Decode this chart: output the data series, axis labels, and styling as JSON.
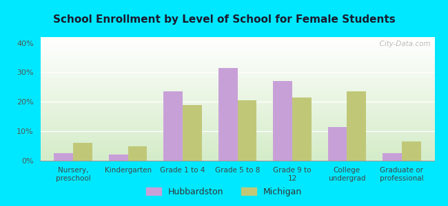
{
  "title": "School Enrollment by Level of School for Female Students",
  "categories": [
    "Nursery,\npreschool",
    "Kindergarten",
    "Grade 1 to 4",
    "Grade 5 to 8",
    "Grade 9 to\n12",
    "College\nundergrad",
    "Graduate or\nprofessional"
  ],
  "hubbardston": [
    2.5,
    2.0,
    23.5,
    31.5,
    27.0,
    11.5,
    2.5
  ],
  "michigan": [
    6.0,
    5.0,
    19.0,
    20.5,
    21.5,
    23.5,
    6.5
  ],
  "hubbardston_color": "#c8a0d8",
  "michigan_color": "#c0c878",
  "background_outer": "#00e8ff",
  "ylim": [
    0,
    42
  ],
  "yticks": [
    0,
    10,
    20,
    30,
    40
  ],
  "ytick_labels": [
    "0%",
    "10%",
    "20%",
    "30%",
    "40%"
  ],
  "bar_width": 0.35,
  "legend_labels": [
    "Hubbardston",
    "Michigan"
  ],
  "watermark": "  City-Data.com"
}
